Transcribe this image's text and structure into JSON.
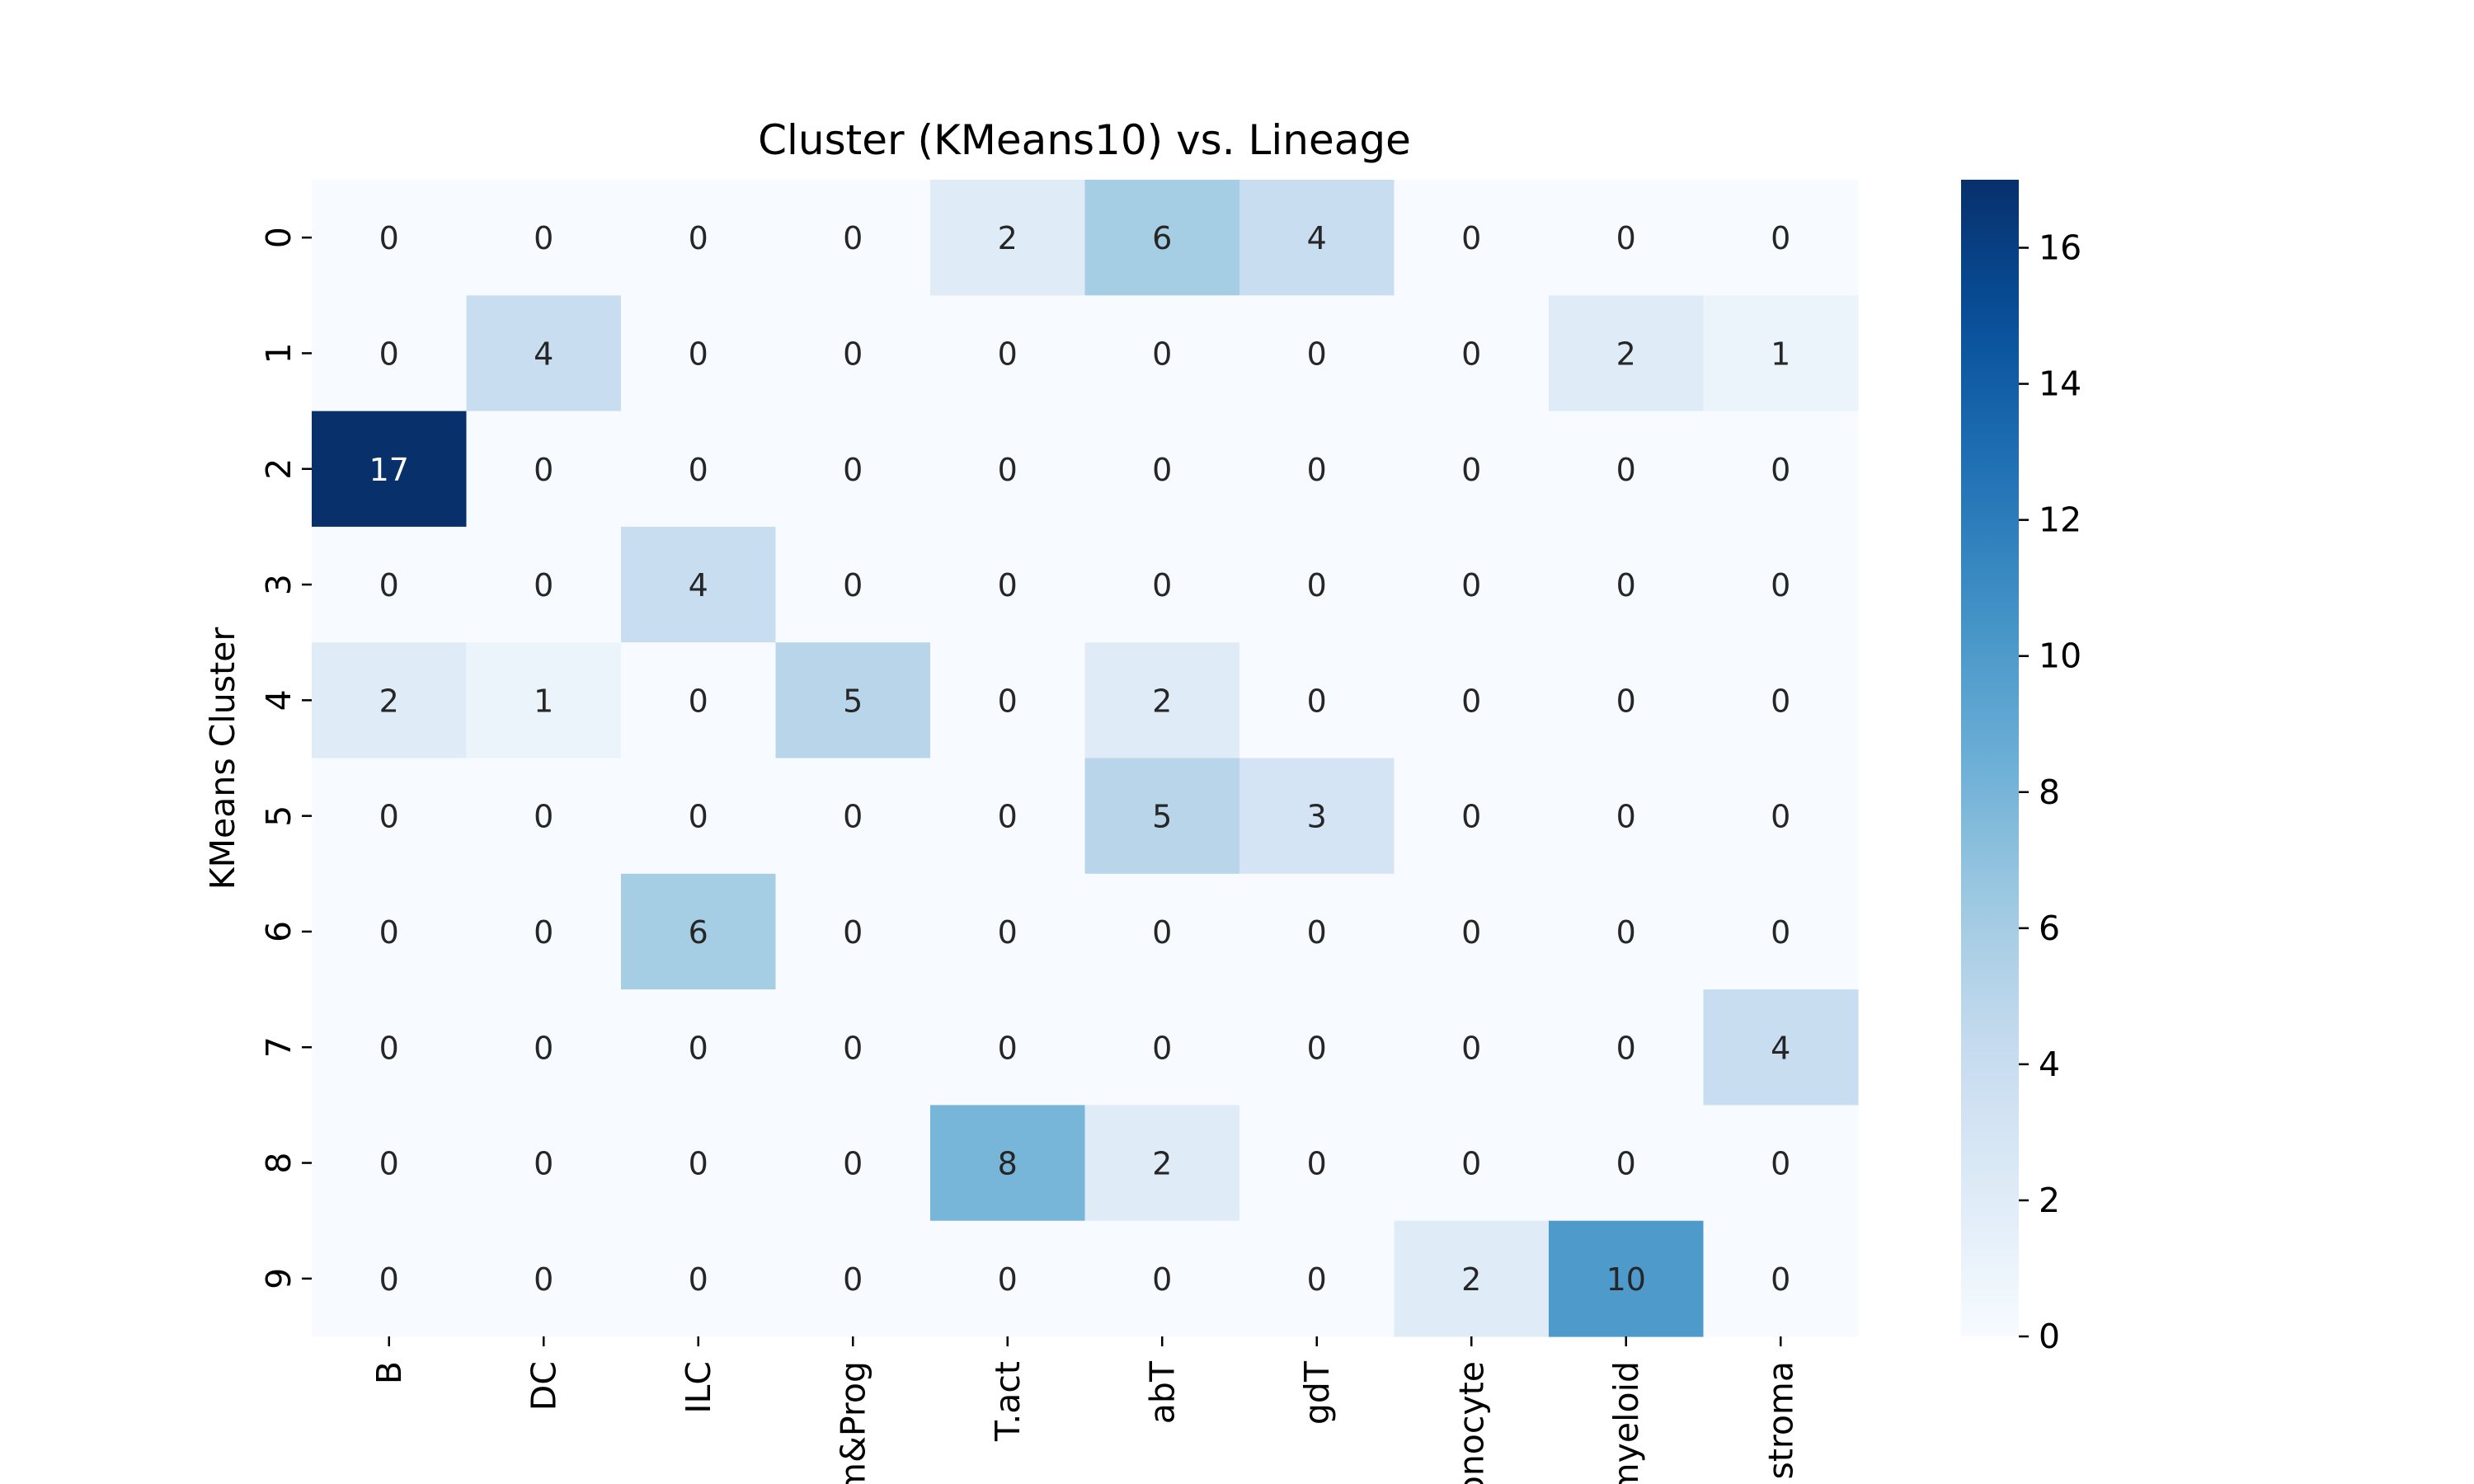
{
  "chart_data": {
    "type": "heatmap",
    "title": "Cluster (KMeans10) vs. Lineage",
    "xlabel": "",
    "ylabel": "KMeans Cluster",
    "x_categories": [
      "B",
      "DC",
      "ILC",
      "m&Prog",
      "T.act",
      "abT",
      "gdT",
      "onocyte",
      "myeloid",
      "stroma"
    ],
    "y_categories": [
      "0",
      "1",
      "2",
      "3",
      "4",
      "5",
      "6",
      "7",
      "8",
      "9"
    ],
    "values": [
      [
        0,
        0,
        0,
        0,
        2,
        6,
        4,
        0,
        0,
        0
      ],
      [
        0,
        4,
        0,
        0,
        0,
        0,
        0,
        0,
        2,
        1
      ],
      [
        17,
        0,
        0,
        0,
        0,
        0,
        0,
        0,
        0,
        0
      ],
      [
        0,
        0,
        4,
        0,
        0,
        0,
        0,
        0,
        0,
        0
      ],
      [
        2,
        1,
        0,
        5,
        0,
        2,
        0,
        0,
        0,
        0
      ],
      [
        0,
        0,
        0,
        0,
        0,
        5,
        3,
        0,
        0,
        0
      ],
      [
        0,
        0,
        6,
        0,
        0,
        0,
        0,
        0,
        0,
        0
      ],
      [
        0,
        0,
        0,
        0,
        0,
        0,
        0,
        0,
        0,
        4
      ],
      [
        0,
        0,
        0,
        0,
        8,
        2,
        0,
        0,
        0,
        0
      ],
      [
        0,
        0,
        0,
        0,
        0,
        0,
        0,
        2,
        10,
        0
      ]
    ],
    "colorbar": {
      "min": 0,
      "max": 17,
      "ticks": [
        0,
        2,
        4,
        6,
        8,
        10,
        12,
        14,
        16
      ],
      "colormap": "Blues",
      "color_low": "#f7fbff",
      "color_high": "#08306b"
    },
    "annotate_values": true,
    "grid": false
  }
}
